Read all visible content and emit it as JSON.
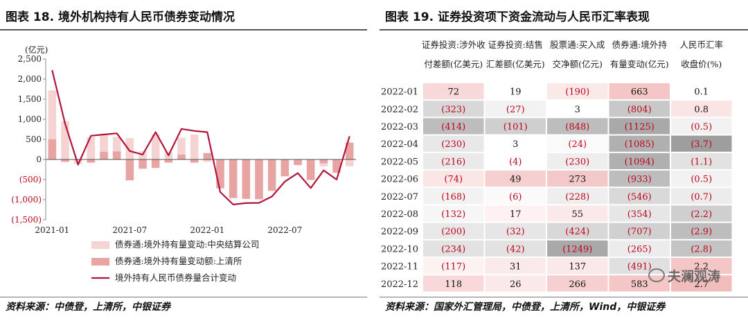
{
  "left": {
    "title": "图表 18. 境外机构持有人民币债券变动情况",
    "source": "资料来源：中债登，上清所，中银证券",
    "unit": "(亿元)",
    "legend": [
      "债券通:境外持有量变动:中央结算公司",
      "债券通:境外持有量变动额:上清所",
      "境外持有人民币债券量合计变动"
    ]
  },
  "right": {
    "title": "图表 19. 证券投资项下资金流动与人民币汇率表现",
    "source": "资料来源：国家外汇管理局，中债登，上清所，Wind，中银证券",
    "headers": [
      [
        "证券投资:涉外收",
        "付差额(亿美元)"
      ],
      [
        "证券投资:结售",
        "汇差额(亿美元)"
      ],
      [
        "股票通:买入成",
        "交净额(亿元)"
      ],
      [
        "债券通:境外持",
        "有量变动(亿元)"
      ],
      [
        "人民币汇率",
        "收盘价(%)"
      ]
    ],
    "rows": [
      {
        "month": "2022-01",
        "cells": [
          "72",
          "19",
          "(190)",
          "663",
          "0.1"
        ]
      },
      {
        "month": "2022-02",
        "cells": [
          "(323)",
          "(27)",
          "3",
          "(804)",
          "0.8"
        ]
      },
      {
        "month": "2022-03",
        "cells": [
          "(414)",
          "(101)",
          "(848)",
          "(1125)",
          "(0.5)"
        ]
      },
      {
        "month": "2022-04",
        "cells": [
          "(230)",
          "3",
          "(24)",
          "(1085)",
          "(3.7)"
        ]
      },
      {
        "month": "2022-05",
        "cells": [
          "(216)",
          "(4)",
          "(230)",
          "(1094)",
          "(1.1)"
        ]
      },
      {
        "month": "2022-06",
        "cells": [
          "(74)",
          "49",
          "273",
          "(933)",
          "(0.5)"
        ]
      },
      {
        "month": "2022-07",
        "cells": [
          "(168)",
          "(6)",
          "(228)",
          "(546)",
          "(0.7)"
        ]
      },
      {
        "month": "2022-08",
        "cells": [
          "(132)",
          "17",
          "55",
          "(354)",
          "(2.2)"
        ]
      },
      {
        "month": "2022-09",
        "cells": [
          "(200)",
          "(32)",
          "(424)",
          "(707)",
          "(2.9)"
        ]
      },
      {
        "month": "2022-10",
        "cells": [
          "(234)",
          "(42)",
          "(1249)",
          "(265)",
          "(2.8)"
        ]
      },
      {
        "month": "2022-11",
        "cells": [
          "(117)",
          "31",
          "137",
          "(491)",
          "2.2"
        ]
      },
      {
        "month": "2022-12",
        "cells": [
          "118",
          "26",
          "266",
          "583",
          "2.7"
        ]
      }
    ],
    "cell_colors": [
      [
        "#f8d8d8",
        "#ffffff",
        "#fbe8e8",
        "#f4c6c6",
        "#ffffff"
      ],
      [
        "#d8d8d8",
        "#f2f2f2",
        "#ffffff",
        "#c8c8c8",
        "#fbe4e4"
      ],
      [
        "#bdbdbd",
        "#cfcfcf",
        "#bdbdbd",
        "#a9a9a9",
        "#f2f2f2"
      ],
      [
        "#e8e8e8",
        "#ffffff",
        "#fafafa",
        "#b0b0b0",
        "#9e9e9e"
      ],
      [
        "#eaeaea",
        "#ffffff",
        "#eeeeee",
        "#b0b0b0",
        "#e2e2e2"
      ],
      [
        "#fbe6e6",
        "#f6d0d0",
        "#f3c8c8",
        "#bdbdbd",
        "#f2f2f2"
      ],
      [
        "#f2f2f2",
        "#fafafa",
        "#eeeeee",
        "#d9d9d9",
        "#ececec"
      ],
      [
        "#f6f6f6",
        "#fdf1f1",
        "#fbe8e8",
        "#e6e6e6",
        "#cfcfcf"
      ],
      [
        "#e8e8e8",
        "#e6e6e6",
        "#d8d8d8",
        "#d0d0d0",
        "#bdbdbd"
      ],
      [
        "#e2e2e2",
        "#e2e2e2",
        "#a9a9a9",
        "#ececec",
        "#c4c4c4"
      ],
      [
        "#fdf2f2",
        "#faeaea",
        "#fbe8e8",
        "#e0e0e0",
        "#f4c6c6"
      ],
      [
        "#f8d8d8",
        "#fbe8e8",
        "#f6d0d0",
        "#f4c6c6",
        "#f0bcbc"
      ]
    ]
  },
  "watermark": "夫澜观涛",
  "colors": {
    "bar_light": "#f5d3d3",
    "bar_dark": "#e8a3a3",
    "line": "#b0143a",
    "negative_text": "#c0001a",
    "positive_text": "#111111"
  },
  "chart_data": {
    "type": "bar",
    "unit": "(亿元)",
    "ylim": [
      -1500,
      2500
    ],
    "yticks": [
      2500,
      2000,
      1500,
      1000,
      500,
      0,
      -500,
      -1000,
      -1500
    ],
    "ytick_labels": [
      "2,500",
      "2,000",
      "1,500",
      "1,000",
      "500",
      "0",
      "(500)",
      "(1,000)",
      "(1,500)"
    ],
    "xtick_labels": [
      "2021-01",
      "2021-07",
      "2022-01",
      "2022-07"
    ],
    "xtick_index": [
      0,
      6,
      12,
      18
    ],
    "categories": [
      "2021-01",
      "2021-02",
      "2021-03",
      "2021-04",
      "2021-05",
      "2021-06",
      "2021-07",
      "2021-08",
      "2021-09",
      "2021-10",
      "2021-11",
      "2021-12",
      "2022-01",
      "2022-02",
      "2022-03",
      "2022-04",
      "2022-05",
      "2022-06",
      "2022-07",
      "2022-08",
      "2022-09",
      "2022-10",
      "2022-11",
      "2022-12"
    ],
    "series": [
      {
        "name": "债券通:境外持有量变动:中央结算公司",
        "type": "bar",
        "values": [
          1720,
          950,
          -110,
          560,
          630,
          560,
          530,
          200,
          620,
          180,
          540,
          620,
          -60,
          -100,
          -120,
          -100,
          -120,
          -150,
          -110,
          -130,
          -200,
          -170,
          -160,
          -170
        ]
      },
      {
        "name": "债券通:境外持有量变动额:上清所",
        "type": "bar",
        "values": [
          500,
          -60,
          -20,
          -80,
          190,
          200,
          -520,
          -230,
          -210,
          -80,
          120,
          -80,
          160,
          -720,
          -960,
          -980,
          -990,
          -780,
          -420,
          -140,
          -510,
          -95,
          -330,
          420
        ]
      },
      {
        "name": "境外持有人民币债券量合计变动",
        "type": "line",
        "values": [
          2220,
          890,
          -130,
          590,
          620,
          650,
          210,
          120,
          680,
          100,
          760,
          710,
          680,
          -810,
          -1120,
          -1085,
          -1080,
          -920,
          -550,
          -340,
          -710,
          -270,
          -500,
          580
        ]
      }
    ]
  }
}
